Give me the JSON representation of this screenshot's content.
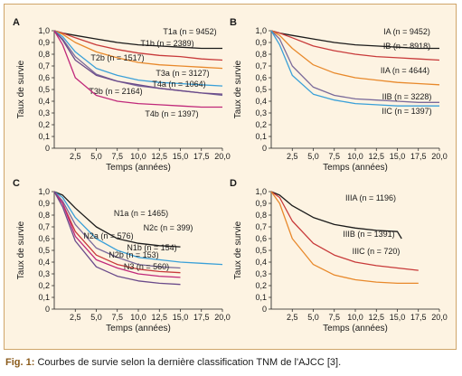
{
  "figure": {
    "caption_prefix": "Fig. 1:",
    "caption_text": " Courbes de survie selon la dernière classification TNM de l'AJCC [3]."
  },
  "chart_data": [
    {
      "type": "line",
      "panel": "A",
      "xlabel": "Temps (années)",
      "ylabel": "Taux de survie",
      "xlim": [
        0,
        20
      ],
      "ylim": [
        0,
        1
      ],
      "x_ticks": [
        "2,5",
        "5,0",
        "7,5",
        "10,0",
        "12,5",
        "15,0",
        "17,5",
        "20,0"
      ],
      "y_ticks": [
        "0",
        "0,1",
        "0,2",
        "0,3",
        "0,4",
        "0,5",
        "0,6",
        "0,7",
        "0,8",
        "0,9",
        "1,0"
      ],
      "grid": false,
      "series": [
        {
          "name": "T1a (n = 9452)",
          "color": "#1a1a1a",
          "x": [
            0,
            1,
            2.5,
            5,
            7.5,
            10,
            12.5,
            15,
            17.5,
            20
          ],
          "y": [
            1,
            0.98,
            0.96,
            0.93,
            0.9,
            0.88,
            0.87,
            0.86,
            0.85,
            0.85
          ]
        },
        {
          "name": "T1b (n = 2389)",
          "color": "#c83a3a",
          "x": [
            0,
            1,
            2.5,
            5,
            7.5,
            10,
            12.5,
            15,
            17.5,
            20
          ],
          "y": [
            1,
            0.98,
            0.94,
            0.88,
            0.84,
            0.81,
            0.79,
            0.78,
            0.76,
            0.75
          ]
        },
        {
          "name": "T2b (n = 1517)",
          "color": "#e8892b",
          "x": [
            0,
            1,
            2.5,
            5,
            7.5,
            10,
            12.5,
            15,
            17.5,
            20
          ],
          "y": [
            1,
            0.97,
            0.9,
            0.82,
            0.77,
            0.73,
            0.71,
            0.7,
            0.69,
            0.68
          ]
        },
        {
          "name": "T3a (n = 3127)",
          "color": "#3aa0d8",
          "x": [
            0,
            1,
            2.5,
            5,
            7.5,
            10,
            12.5,
            15,
            17.5,
            20
          ],
          "y": [
            1,
            0.95,
            0.82,
            0.68,
            0.62,
            0.58,
            0.56,
            0.55,
            0.54,
            0.53
          ]
        },
        {
          "name": "T4a (n = 1064)",
          "color": "#7a6a9a",
          "x": [
            0,
            1,
            2.5,
            5,
            7.5,
            10,
            12.5,
            15,
            17.5,
            20
          ],
          "y": [
            1,
            0.93,
            0.78,
            0.63,
            0.57,
            0.53,
            0.51,
            0.49,
            0.47,
            0.45
          ]
        },
        {
          "name": "T3b (n = 2164)",
          "color": "#6a4a8a",
          "x": [
            0,
            1,
            2.5,
            5,
            7.5,
            10,
            12.5,
            15,
            17.5,
            20
          ],
          "y": [
            1,
            0.92,
            0.75,
            0.62,
            0.57,
            0.54,
            0.51,
            0.49,
            0.47,
            0.46
          ]
        },
        {
          "name": "T4b (n = 1397)",
          "color": "#c0287a",
          "x": [
            0,
            1,
            2.5,
            5,
            7.5,
            10,
            12.5,
            15,
            17.5,
            20
          ],
          "y": [
            1,
            0.88,
            0.6,
            0.45,
            0.4,
            0.38,
            0.37,
            0.36,
            0.35,
            0.35
          ]
        }
      ]
    },
    {
      "type": "line",
      "panel": "B",
      "xlabel": "Temps (années)",
      "ylabel": "Taux de survie",
      "xlim": [
        0,
        20
      ],
      "ylim": [
        0,
        1
      ],
      "x_ticks": [
        "2,5",
        "5,0",
        "7,5",
        "10,0",
        "12,5",
        "15,0",
        "17,5",
        "20,0"
      ],
      "y_ticks": [
        "0",
        "0,1",
        "0,2",
        "0,3",
        "0,4",
        "0,5",
        "0,6",
        "0,7",
        "0,8",
        "0,9",
        "1,0"
      ],
      "grid": false,
      "series": [
        {
          "name": "IA (n = 9452)",
          "color": "#1a1a1a",
          "x": [
            0,
            1,
            2.5,
            5,
            7.5,
            10,
            12.5,
            15,
            17.5,
            20
          ],
          "y": [
            1,
            0.98,
            0.96,
            0.93,
            0.9,
            0.88,
            0.87,
            0.86,
            0.85,
            0.85
          ]
        },
        {
          "name": "IB (n = 8918)",
          "color": "#c83a3a",
          "x": [
            0,
            1,
            2.5,
            5,
            7.5,
            10,
            12.5,
            15,
            17.5,
            20
          ],
          "y": [
            1,
            0.98,
            0.94,
            0.87,
            0.83,
            0.8,
            0.78,
            0.77,
            0.76,
            0.75
          ]
        },
        {
          "name": "IIA (n = 4644)",
          "color": "#e8892b",
          "x": [
            0,
            1,
            2.5,
            5,
            7.5,
            10,
            12.5,
            15,
            17.5,
            20
          ],
          "y": [
            1,
            0.96,
            0.85,
            0.71,
            0.64,
            0.6,
            0.58,
            0.56,
            0.55,
            0.54
          ]
        },
        {
          "name": "IIB (n = 3228)",
          "color": "#7a6a9a",
          "x": [
            0,
            1,
            2.5,
            5,
            7.5,
            10,
            12.5,
            15,
            17.5,
            20
          ],
          "y": [
            1,
            0.93,
            0.7,
            0.52,
            0.45,
            0.42,
            0.41,
            0.4,
            0.39,
            0.39
          ]
        },
        {
          "name": "IIC (n = 1397)",
          "color": "#3aa0d8",
          "x": [
            0,
            1,
            2.5,
            5,
            7.5,
            10,
            12.5,
            15,
            17.5,
            20
          ],
          "y": [
            1,
            0.88,
            0.62,
            0.46,
            0.41,
            0.38,
            0.37,
            0.36,
            0.36,
            0.36
          ]
        }
      ]
    },
    {
      "type": "line",
      "panel": "C",
      "xlabel": "Temps (années)",
      "ylabel": "Taux de survie",
      "xlim": [
        0,
        20
      ],
      "ylim": [
        0,
        1
      ],
      "x_ticks": [
        "2,5",
        "5,0",
        "7,5",
        "10,0",
        "12,5",
        "15,0",
        "17,5",
        "20,0"
      ],
      "y_ticks": [
        "0",
        "0,1",
        "0,2",
        "0,3",
        "0,4",
        "0,5",
        "0,6",
        "0,7",
        "0,8",
        "0,9",
        "1,0"
      ],
      "grid": false,
      "series": [
        {
          "name": "N1a (n = 1465)",
          "color": "#1a1a1a",
          "x": [
            0,
            1,
            2.5,
            5,
            7.5,
            10,
            12.5,
            15
          ],
          "y": [
            1,
            0.97,
            0.86,
            0.7,
            0.6,
            0.56,
            0.54,
            0.53
          ]
        },
        {
          "name": "N2c (n = 399)",
          "color": "#3aa0d8",
          "x": [
            0,
            1,
            2.5,
            5,
            7.5,
            10,
            12.5,
            15,
            17.5,
            20
          ],
          "y": [
            1,
            0.95,
            0.78,
            0.6,
            0.5,
            0.44,
            0.42,
            0.4,
            0.39,
            0.38
          ]
        },
        {
          "name": "N2a (n = 576)",
          "color": "#7a6a9a",
          "x": [
            0,
            1,
            2.5,
            5,
            7.5,
            10,
            12.5,
            15
          ],
          "y": [
            1,
            0.92,
            0.72,
            0.52,
            0.44,
            0.38,
            0.36,
            0.35
          ]
        },
        {
          "name": "N1b (n = 154)",
          "color": "#c83a3a",
          "x": [
            0,
            1,
            2.5,
            5,
            7.5,
            10,
            12.5,
            15
          ],
          "y": [
            1,
            0.9,
            0.66,
            0.46,
            0.38,
            0.34,
            0.32,
            0.31
          ]
        },
        {
          "name": "N2b (n = 153)",
          "color": "#c0287a",
          "x": [
            0,
            1,
            2.5,
            5,
            7.5,
            10,
            12.5,
            15
          ],
          "y": [
            1,
            0.9,
            0.62,
            0.42,
            0.35,
            0.3,
            0.28,
            0.27
          ]
        },
        {
          "name": "N3 (n = 560)",
          "color": "#6a4a8a",
          "x": [
            0,
            1,
            2.5,
            5,
            7.5,
            10,
            12.5,
            15
          ],
          "y": [
            1,
            0.87,
            0.58,
            0.36,
            0.28,
            0.24,
            0.22,
            0.21
          ]
        }
      ]
    },
    {
      "type": "line",
      "panel": "D",
      "xlabel": "Temps (années)",
      "ylabel": "Taux de survie",
      "xlim": [
        0,
        20
      ],
      "ylim": [
        0,
        1
      ],
      "x_ticks": [
        "2,5",
        "5,0",
        "7,5",
        "10,0",
        "12,5",
        "15,0",
        "17,5",
        "20,0"
      ],
      "y_ticks": [
        "0",
        "0,1",
        "0,2",
        "0,3",
        "0,4",
        "0,5",
        "0,6",
        "0,7",
        "0,8",
        "0,9",
        "1,0"
      ],
      "grid": false,
      "series": [
        {
          "name": "IIIA (n = 1196)",
          "color": "#1a1a1a",
          "x": [
            0,
            1,
            2.5,
            5,
            7.5,
            10,
            12.5,
            15,
            15.5
          ],
          "y": [
            1,
            0.97,
            0.88,
            0.78,
            0.72,
            0.69,
            0.67,
            0.66,
            0.6
          ]
        },
        {
          "name": "IIIB (n = 1391)",
          "color": "#c83a3a",
          "x": [
            0,
            1,
            2.5,
            5,
            7.5,
            10,
            12.5,
            15,
            17.5
          ],
          "y": [
            1,
            0.95,
            0.75,
            0.56,
            0.46,
            0.4,
            0.37,
            0.35,
            0.33
          ]
        },
        {
          "name": "IIIC (n = 720)",
          "color": "#e8892b",
          "x": [
            0,
            1,
            2.5,
            5,
            7.5,
            10,
            12.5,
            15,
            17.5
          ],
          "y": [
            1,
            0.9,
            0.6,
            0.38,
            0.29,
            0.25,
            0.23,
            0.22,
            0.22
          ]
        }
      ]
    }
  ]
}
